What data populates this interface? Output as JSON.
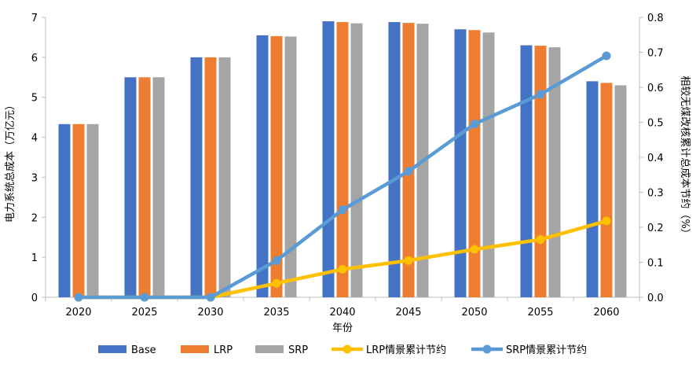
{
  "chart_data": {
    "type": "bar",
    "categories": [
      "2020",
      "2025",
      "2030",
      "2035",
      "2040",
      "2045",
      "2050",
      "2055",
      "2060"
    ],
    "series": [
      {
        "name": "Base",
        "kind": "bar",
        "axis": "left",
        "color": "#4472C4",
        "values": [
          4.33,
          5.5,
          6.0,
          6.55,
          6.9,
          6.88,
          6.7,
          6.3,
          5.4
        ]
      },
      {
        "name": "LRP",
        "kind": "bar",
        "axis": "left",
        "color": "#ED7D31",
        "values": [
          4.33,
          5.5,
          6.0,
          6.53,
          6.88,
          6.86,
          6.68,
          6.29,
          5.36
        ]
      },
      {
        "name": "SRP",
        "kind": "bar",
        "axis": "left",
        "color": "#A5A5A5",
        "values": [
          4.33,
          5.5,
          6.0,
          6.52,
          6.85,
          6.84,
          6.62,
          6.25,
          5.3
        ]
      },
      {
        "name": "LRP情景累计节约",
        "kind": "line",
        "axis": "right",
        "color": "#FFC000",
        "values": [
          0.0,
          0.0,
          0.0,
          0.04,
          0.08,
          0.105,
          0.137,
          0.165,
          0.218
        ]
      },
      {
        "name": "SRP情景累计节约",
        "kind": "line",
        "axis": "right",
        "color": "#5B9BD5",
        "values": [
          0.0,
          0.0,
          0.0,
          0.105,
          0.25,
          0.36,
          0.495,
          0.58,
          0.69
        ]
      }
    ],
    "xlabel": "年份",
    "ylabel": "电力系统总成本（万亿元）",
    "y2label": "相较无煤改核累计总成本节约（%）",
    "ylim": [
      0,
      7
    ],
    "y2lim": [
      0,
      0.8
    ],
    "yticks": [
      "0",
      "1",
      "2",
      "3",
      "4",
      "5",
      "6",
      "7"
    ],
    "y2ticks": [
      "0.0",
      "0.1",
      "0.2",
      "0.3",
      "0.4",
      "0.5",
      "0.6",
      "0.7",
      "0.8"
    ],
    "legend_position": "bottom"
  }
}
